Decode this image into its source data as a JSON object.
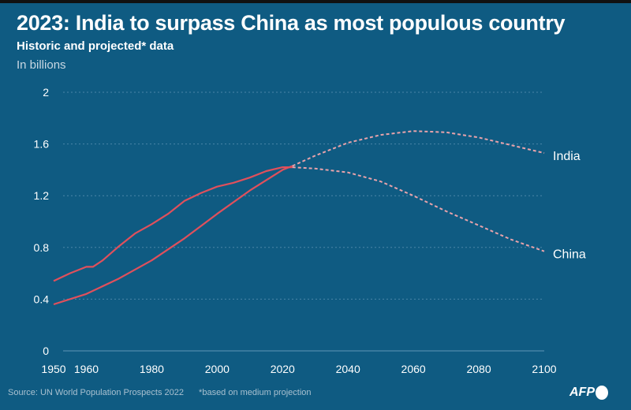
{
  "title": "2023: India to surpass China as most populous country",
  "subtitle": "Historic and projected* data",
  "unit": "In billions",
  "footer": {
    "source": "Source: UN World Population Prospects 2022",
    "note": "*based on medium projection"
  },
  "logo": "AFP",
  "colors": {
    "background": "#0f5b82",
    "historic": "#e0505c",
    "projected": "#e9a3ab"
  },
  "chart_data": {
    "type": "line",
    "ylim": [
      0,
      2
    ],
    "xlim": [
      1950,
      2100
    ],
    "y_ticks": [
      "0",
      "0.4",
      "0.8",
      "1.2",
      "1.6",
      "2"
    ],
    "x_ticks": [
      "1950",
      "1960",
      "1980",
      "2000",
      "2020",
      "2040",
      "2060",
      "2080",
      "2100"
    ],
    "grid": true,
    "series": [
      {
        "name": "China",
        "historic": [
          [
            1950,
            0.54
          ],
          [
            1955,
            0.6
          ],
          [
            1960,
            0.65
          ],
          [
            1962,
            0.65
          ],
          [
            1965,
            0.7
          ],
          [
            1970,
            0.81
          ],
          [
            1975,
            0.91
          ],
          [
            1980,
            0.98
          ],
          [
            1985,
            1.06
          ],
          [
            1990,
            1.16
          ],
          [
            1995,
            1.22
          ],
          [
            2000,
            1.27
          ],
          [
            2005,
            1.3
          ],
          [
            2010,
            1.34
          ],
          [
            2015,
            1.39
          ],
          [
            2020,
            1.42
          ],
          [
            2023,
            1.42
          ]
        ],
        "projected": [
          [
            2023,
            1.42
          ],
          [
            2030,
            1.41
          ],
          [
            2040,
            1.38
          ],
          [
            2050,
            1.31
          ],
          [
            2060,
            1.2
          ],
          [
            2070,
            1.08
          ],
          [
            2080,
            0.97
          ],
          [
            2090,
            0.86
          ],
          [
            2100,
            0.77
          ]
        ]
      },
      {
        "name": "India",
        "historic": [
          [
            1950,
            0.36
          ],
          [
            1960,
            0.44
          ],
          [
            1970,
            0.56
          ],
          [
            1980,
            0.7
          ],
          [
            1990,
            0.87
          ],
          [
            2000,
            1.06
          ],
          [
            2010,
            1.24
          ],
          [
            2020,
            1.4
          ],
          [
            2023,
            1.43
          ]
        ],
        "projected": [
          [
            2023,
            1.43
          ],
          [
            2030,
            1.51
          ],
          [
            2040,
            1.61
          ],
          [
            2050,
            1.67
          ],
          [
            2060,
            1.7
          ],
          [
            2070,
            1.69
          ],
          [
            2080,
            1.65
          ],
          [
            2090,
            1.59
          ],
          [
            2100,
            1.53
          ]
        ]
      }
    ]
  }
}
